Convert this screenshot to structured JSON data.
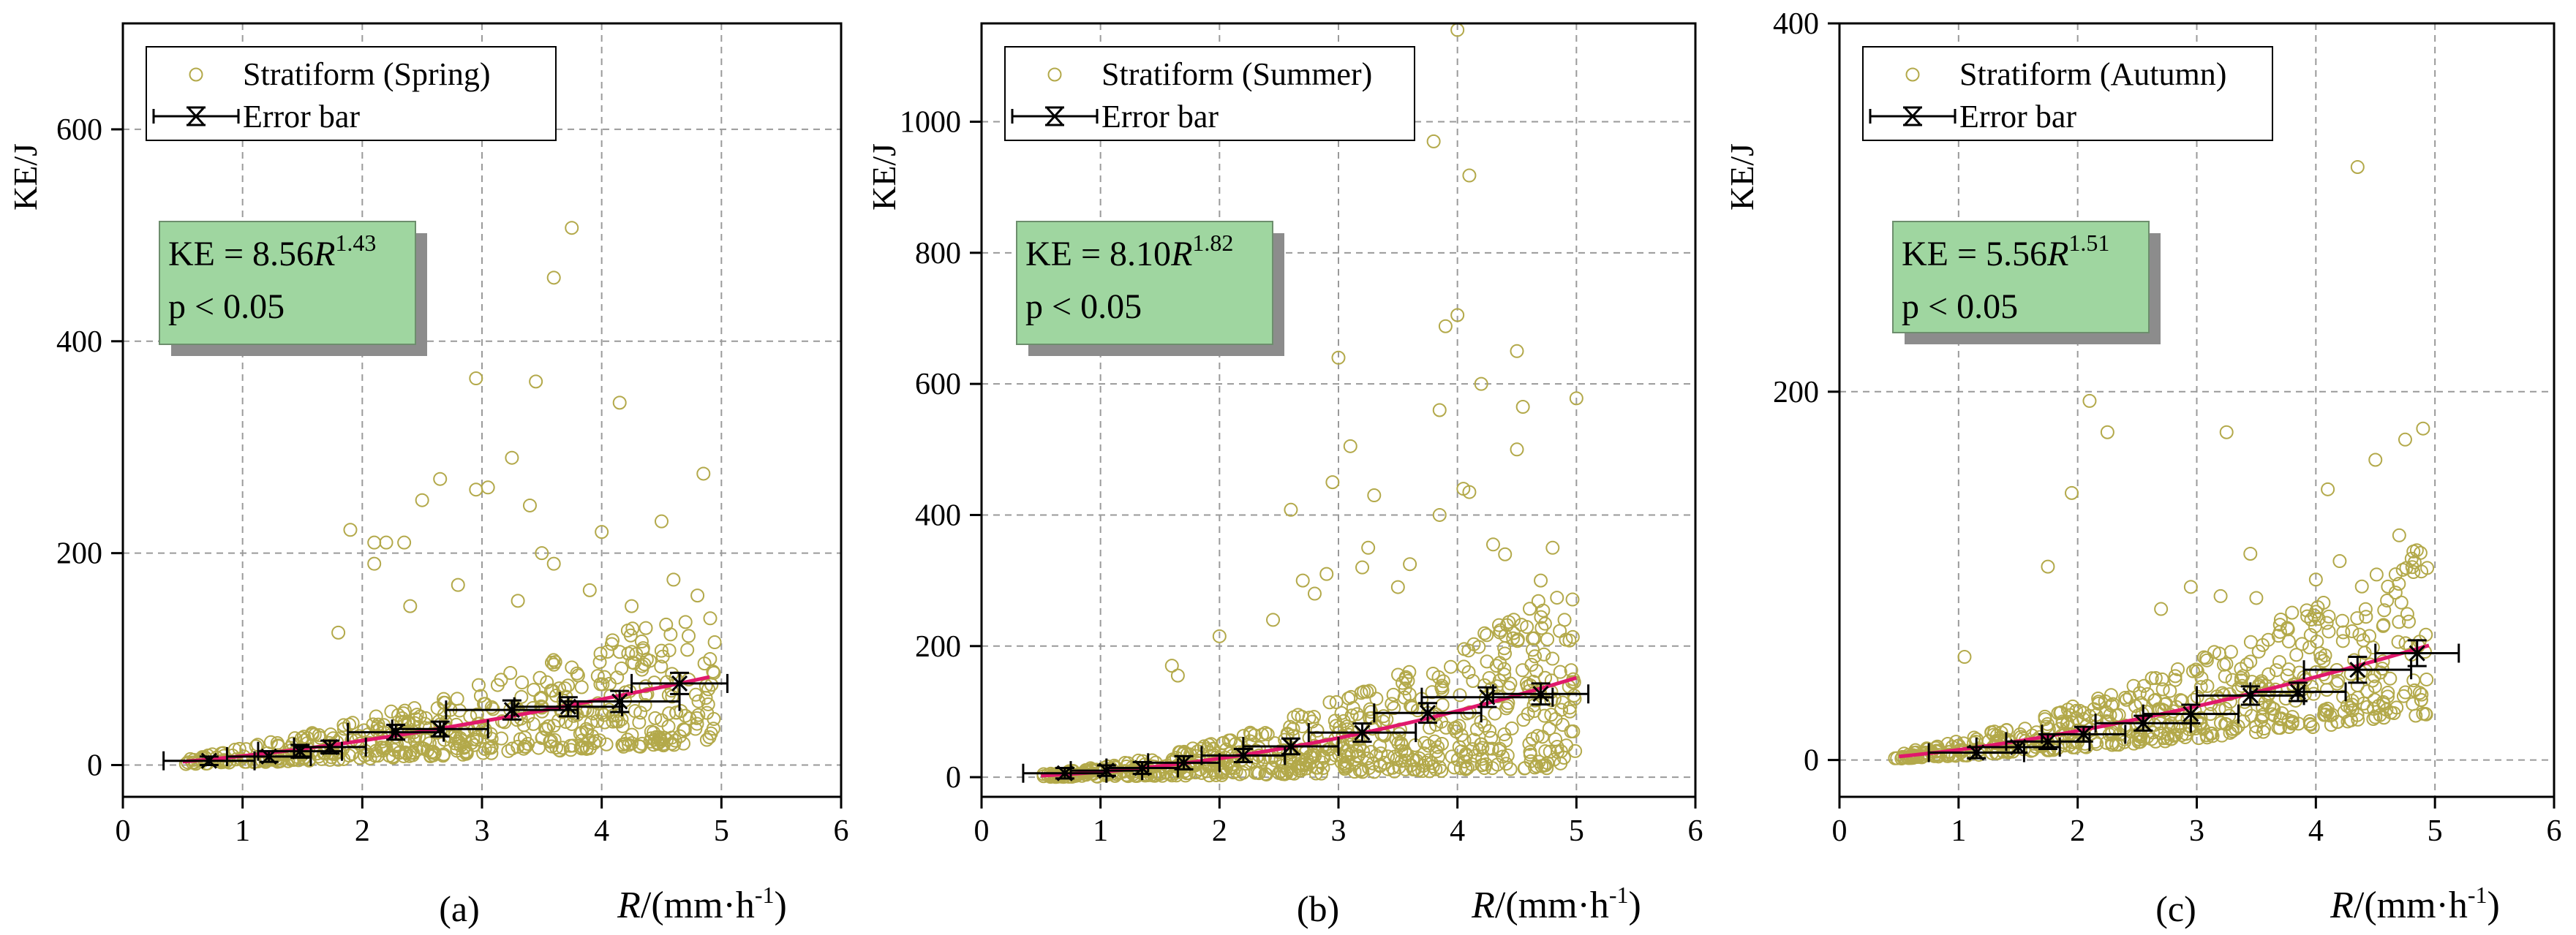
{
  "chart_data": [
    {
      "type": "scatter",
      "panel_label": "(a)",
      "legend": {
        "scatter_label": "Stratiform (Spring)",
        "errorbar_label": "Error bar",
        "placement": "top-left"
      },
      "equation": {
        "prefix": "KE = 8.56",
        "var": "R",
        "exponent": "1.43",
        "coef": 8.56,
        "exp": 1.43,
        "pvalue": "p < 0.05"
      },
      "xlabel": {
        "var": "R",
        "unit": "/(mm·h",
        "sup": "-1",
        "close": ")"
      },
      "ylabel": "KE/J",
      "xlim": [
        0,
        6
      ],
      "ylim": [
        -30,
        700
      ],
      "xticks": [
        0,
        1,
        2,
        3,
        4,
        5,
        6
      ],
      "yticks": [
        0,
        200,
        400,
        600
      ],
      "fit": {
        "x_range": [
          0.5,
          4.9
        ]
      },
      "error_bars": [
        {
          "x": 0.72,
          "xerr": 0.38,
          "y": 4,
          "yerr": 4
        },
        {
          "x": 1.22,
          "xerr": 0.35,
          "y": 8,
          "yerr": 5
        },
        {
          "x": 1.48,
          "xerr": 0.35,
          "y": 13,
          "yerr": 6
        },
        {
          "x": 1.73,
          "xerr": 0.3,
          "y": 17,
          "yerr": 6
        },
        {
          "x": 2.28,
          "xerr": 0.4,
          "y": 31,
          "yerr": 7
        },
        {
          "x": 2.65,
          "xerr": 0.4,
          "y": 34,
          "yerr": 7
        },
        {
          "x": 3.25,
          "xerr": 0.55,
          "y": 52,
          "yerr": 9
        },
        {
          "x": 3.72,
          "xerr": 0.45,
          "y": 55,
          "yerr": 9
        },
        {
          "x": 4.15,
          "xerr": 0.5,
          "y": 60,
          "yerr": 10
        },
        {
          "x": 4.65,
          "xerr": 0.4,
          "y": 77,
          "yerr": 10
        }
      ],
      "outliers": [
        [
          1.9,
          222
        ],
        [
          2.1,
          210
        ],
        [
          2.1,
          190
        ],
        [
          2.2,
          210
        ],
        [
          2.35,
          210
        ],
        [
          2.5,
          250
        ],
        [
          2.65,
          270
        ],
        [
          2.95,
          365
        ],
        [
          2.95,
          260
        ],
        [
          3.05,
          262
        ],
        [
          3.25,
          290
        ],
        [
          3.4,
          245
        ],
        [
          3.45,
          362
        ],
        [
          3.6,
          460
        ],
        [
          3.75,
          507
        ],
        [
          3.5,
          200
        ],
        [
          3.6,
          190
        ],
        [
          4.0,
          220
        ],
        [
          4.15,
          342
        ],
        [
          4.25,
          150
        ],
        [
          4.5,
          230
        ],
        [
          4.6,
          175
        ],
        [
          4.85,
          275
        ],
        [
          4.8,
          160
        ],
        [
          4.7,
          135
        ],
        [
          1.8,
          125
        ],
        [
          2.8,
          170
        ],
        [
          3.3,
          155
        ],
        [
          3.9,
          165
        ],
        [
          2.4,
          150
        ]
      ],
      "cloud": {
        "seed": 17,
        "n": 520,
        "x_range": [
          0.5,
          4.95
        ],
        "y_rel_min": 0.25,
        "y_rel_max": 1.9
      }
    },
    {
      "type": "scatter",
      "panel_label": "(b)",
      "legend": {
        "scatter_label": "Stratiform (Summer)",
        "errorbar_label": "Error bar",
        "placement": "top-left"
      },
      "equation": {
        "prefix": "KE = 8.10",
        "var": "R",
        "exponent": "1.82",
        "coef": 8.1,
        "exp": 1.82,
        "pvalue": "p < 0.05"
      },
      "xlabel": {
        "var": "R",
        "unit": "/(mm·h",
        "sup": "-1",
        "close": ")"
      },
      "ylabel": "KE/J",
      "xlim": [
        0,
        6
      ],
      "ylim": [
        -30,
        1150
      ],
      "xticks": [
        0,
        1,
        2,
        3,
        4,
        5,
        6
      ],
      "yticks": [
        0,
        200,
        400,
        600,
        800,
        1000
      ],
      "fit": {
        "x_range": [
          0.5,
          5.0
        ]
      },
      "error_bars": [
        {
          "x": 0.7,
          "xerr": 0.35,
          "y": 6,
          "yerr": 8
        },
        {
          "x": 1.05,
          "xerr": 0.3,
          "y": 10,
          "yerr": 8
        },
        {
          "x": 1.35,
          "xerr": 0.3,
          "y": 14,
          "yerr": 9
        },
        {
          "x": 1.7,
          "xerr": 0.3,
          "y": 22,
          "yerr": 10
        },
        {
          "x": 2.2,
          "xerr": 0.35,
          "y": 33,
          "yerr": 10
        },
        {
          "x": 2.6,
          "xerr": 0.4,
          "y": 47,
          "yerr": 12
        },
        {
          "x": 3.2,
          "xerr": 0.45,
          "y": 68,
          "yerr": 14
        },
        {
          "x": 3.75,
          "xerr": 0.45,
          "y": 98,
          "yerr": 15
        },
        {
          "x": 4.25,
          "xerr": 0.55,
          "y": 122,
          "yerr": 15
        },
        {
          "x": 4.7,
          "xerr": 0.4,
          "y": 127,
          "yerr": 16
        }
      ],
      "outliers": [
        [
          4.0,
          1140
        ],
        [
          3.8,
          970
        ],
        [
          4.1,
          918
        ],
        [
          3.9,
          688
        ],
        [
          4.0,
          705
        ],
        [
          4.5,
          650
        ],
        [
          3.0,
          640
        ],
        [
          4.2,
          600
        ],
        [
          3.85,
          560
        ],
        [
          5.0,
          578
        ],
        [
          4.55,
          565
        ],
        [
          3.1,
          505
        ],
        [
          4.5,
          500
        ],
        [
          2.95,
          450
        ],
        [
          3.3,
          430
        ],
        [
          4.05,
          440
        ],
        [
          4.1,
          435
        ],
        [
          2.6,
          408
        ],
        [
          3.85,
          400
        ],
        [
          3.25,
          350
        ],
        [
          3.6,
          325
        ],
        [
          4.3,
          355
        ],
        [
          4.4,
          340
        ],
        [
          2.7,
          300
        ],
        [
          2.9,
          310
        ],
        [
          3.2,
          320
        ],
        [
          4.8,
          350
        ],
        [
          1.6,
          170
        ],
        [
          1.65,
          155
        ],
        [
          2.0,
          215
        ],
        [
          2.45,
          240
        ],
        [
          2.8,
          280
        ],
        [
          3.5,
          290
        ],
        [
          4.7,
          300
        ],
        [
          4.9,
          240
        ]
      ],
      "cloud": {
        "seed": 29,
        "n": 650,
        "x_range": [
          0.5,
          5.0
        ],
        "y_rel_min": 0.1,
        "y_rel_max": 2.0
      }
    },
    {
      "type": "scatter",
      "panel_label": "(c)",
      "legend": {
        "scatter_label": "Stratiform (Autumn)",
        "errorbar_label": "Error bar",
        "placement": "top-left"
      },
      "equation": {
        "prefix": "KE = 5.56",
        "var": "R",
        "exponent": "1.51",
        "coef": 5.56,
        "exp": 1.51,
        "pvalue": "p < 0.05"
      },
      "xlabel": {
        "var": "R",
        "unit": "/(mm·h",
        "sup": "-1",
        "close": ")"
      },
      "ylabel": "KE/J",
      "xlim": [
        0,
        6
      ],
      "ylim": [
        -20,
        400
      ],
      "xticks": [
        0,
        1,
        2,
        3,
        4,
        5,
        6
      ],
      "yticks": [
        0,
        200,
        400
      ],
      "fit": {
        "x_range": [
          0.5,
          4.95
        ]
      },
      "error_bars": [
        {
          "x": 1.15,
          "xerr": 0.4,
          "y": 4,
          "yerr": 3
        },
        {
          "x": 1.5,
          "xerr": 0.35,
          "y": 7,
          "yerr": 3
        },
        {
          "x": 1.75,
          "xerr": 0.35,
          "y": 10,
          "yerr": 4
        },
        {
          "x": 2.05,
          "xerr": 0.35,
          "y": 14,
          "yerr": 4
        },
        {
          "x": 2.55,
          "xerr": 0.4,
          "y": 20,
          "yerr": 4
        },
        {
          "x": 2.95,
          "xerr": 0.4,
          "y": 25,
          "yerr": 5
        },
        {
          "x": 3.45,
          "xerr": 0.45,
          "y": 35,
          "yerr": 5
        },
        {
          "x": 3.85,
          "xerr": 0.4,
          "y": 37,
          "yerr": 5
        },
        {
          "x": 4.35,
          "xerr": 0.45,
          "y": 49,
          "yerr": 7
        },
        {
          "x": 4.85,
          "xerr": 0.35,
          "y": 58,
          "yerr": 7
        }
      ],
      "outliers": [
        [
          4.35,
          322
        ],
        [
          2.1,
          195
        ],
        [
          2.25,
          178
        ],
        [
          3.25,
          178
        ],
        [
          4.75,
          174
        ],
        [
          4.9,
          180
        ],
        [
          4.1,
          147
        ],
        [
          4.5,
          163
        ],
        [
          1.95,
          145
        ],
        [
          3.45,
          112
        ],
        [
          1.75,
          105
        ],
        [
          4.7,
          122
        ],
        [
          2.95,
          94
        ],
        [
          3.2,
          89
        ],
        [
          3.5,
          88
        ],
        [
          1.05,
          56
        ],
        [
          4.0,
          98
        ],
        [
          3.8,
          80
        ],
        [
          2.7,
          82
        ],
        [
          4.2,
          108
        ]
      ],
      "cloud": {
        "seed": 43,
        "n": 560,
        "x_range": [
          0.45,
          4.95
        ],
        "y_rel_min": 0.4,
        "y_rel_max": 1.9
      }
    }
  ]
}
